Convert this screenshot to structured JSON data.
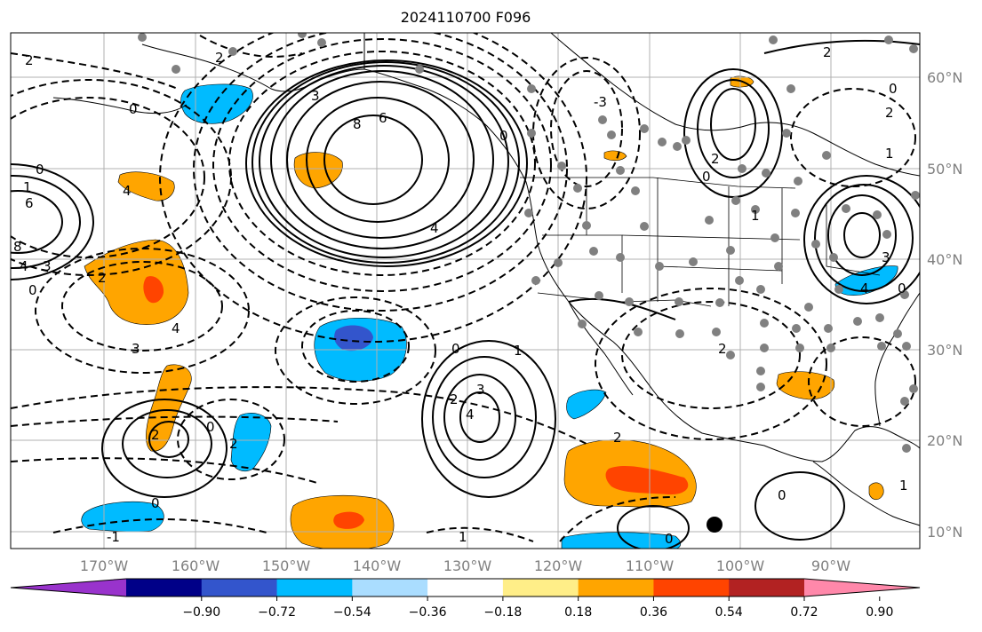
{
  "title": "2024110700 F096",
  "colors": {
    "grid": "#b0b0b0",
    "contour": "#000000",
    "station_dot": "#808080",
    "land_border": "#000000"
  },
  "longitude_ticks": [
    "170°W",
    "160°W",
    "150°W",
    "140°W",
    "130°W",
    "120°W",
    "110°W",
    "100°W",
    "90°W"
  ],
  "latitude_ticks": [
    "60°N",
    "50°N",
    "40°N",
    "30°N",
    "20°N",
    "10°N"
  ],
  "colorbar": {
    "colors": [
      "#9933cc",
      "#000088",
      "#3355cc",
      "#00bbff",
      "#aaddff",
      "#ffffff",
      "#ffee88",
      "#ffa500",
      "#ff4400",
      "#b22222",
      "#ff88aa"
    ],
    "tick_labels": [
      "−0.90",
      "−0.72",
      "−0.54",
      "−0.36",
      "−0.18",
      "0.18",
      "0.36",
      "0.54",
      "0.72",
      "0.90"
    ]
  },
  "contour_labels": [
    "2",
    "0",
    "2",
    "3",
    "8",
    "6",
    "4",
    "0",
    "0",
    "6",
    "8",
    "4",
    "3",
    "0",
    "4",
    "3",
    "0",
    "-1",
    "0",
    "1",
    "2",
    "3",
    "4",
    "2",
    "0",
    "1",
    "0",
    "-3",
    "2",
    "0",
    "2",
    "1",
    "3",
    "4",
    "0",
    "2",
    "0",
    "1",
    "2",
    "1",
    "0",
    "2",
    "4",
    "2",
    "2",
    "1"
  ]
}
